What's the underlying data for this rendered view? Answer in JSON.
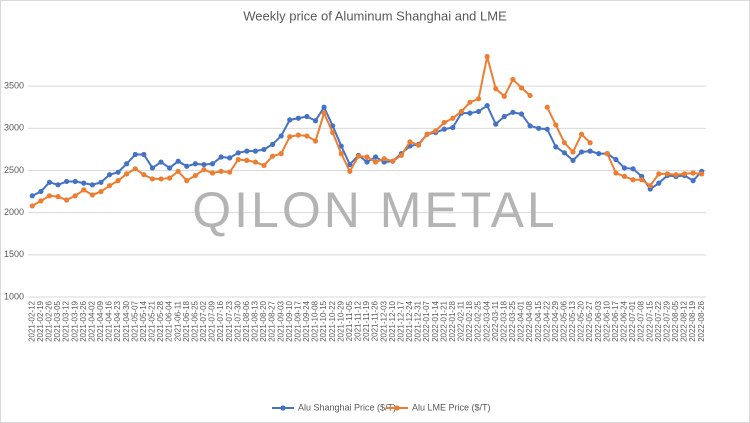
{
  "chart_data": {
    "type": "line",
    "title": "Weekly price of Aluminum Shanghai and LME",
    "watermark": "QILON METAL",
    "categories": [
      "2021-02-12",
      "2021-02-19",
      "2021-02-26",
      "2021-03-05",
      "2021-03-12",
      "2021-03-19",
      "2021-03-26",
      "2021-04-02",
      "2021-04-09",
      "2021-04-16",
      "2021-04-23",
      "2021-04-30",
      "2021-05-07",
      "2021-05-14",
      "2021-05-21",
      "2021-05-28",
      "2021-06-04",
      "2021-06-11",
      "2021-06-18",
      "2021-06-25",
      "2021-07-02",
      "2021-07-09",
      "2021-07-16",
      "2021-07-23",
      "2021-07-30",
      "2021-08-06",
      "2021-08-13",
      "2021-08-20",
      "2021-08-27",
      "2021-09-03",
      "2021-09-10",
      "2021-09-17",
      "2021-09-24",
      "2021-10-08",
      "2021-10-15",
      "2021-10-22",
      "2021-10-29",
      "2021-11-05",
      "2021-11-12",
      "2021-11-19",
      "2021-11-26",
      "2021-12-03",
      "2021-12-10",
      "2021-12-17",
      "2021-12-24",
      "2021-12-31",
      "2022-01-07",
      "2022-01-14",
      "2022-01-21",
      "2022-01-28",
      "2022-02-11",
      "2022-02-18",
      "2022-02-25",
      "2022-03-04",
      "2022-03-11",
      "2022-03-18",
      "2022-03-25",
      "2022-04-01",
      "2022-04-08",
      "2022-04-15",
      "2022-04-22",
      "2022-04-29",
      "2022-05-06",
      "2022-05-13",
      "2022-05-20",
      "2022-05-27",
      "2022-06-03",
      "2022-06-10",
      "2022-06-17",
      "2022-06-24",
      "2022-07-01",
      "2022-07-08",
      "2022-07-15",
      "2022-07-22",
      "2022-07-29",
      "2022-08-05",
      "2022-08-12",
      "2022-08-19",
      "2022-08-26"
    ],
    "series": [
      {
        "name": "Alu Shanghai Price ($/T)",
        "color": "#4472c4",
        "values": [
          2200,
          2250,
          2360,
          2330,
          2370,
          2370,
          2350,
          2330,
          2360,
          2450,
          2480,
          2580,
          2690,
          2690,
          2530,
          2600,
          2530,
          2610,
          2550,
          2580,
          2570,
          2580,
          2660,
          2650,
          2710,
          2730,
          2730,
          2750,
          2810,
          2910,
          3100,
          3120,
          3140,
          3090,
          3250,
          3030,
          2790,
          2570,
          2680,
          2600,
          2660,
          2600,
          2610,
          2700,
          2790,
          2810,
          2930,
          2950,
          2990,
          3010,
          3180,
          3180,
          3200,
          3270,
          3050,
          3140,
          3190,
          3170,
          3030,
          3000,
          2990,
          2780,
          2710,
          2620,
          2720,
          2730,
          2700,
          2700,
          2630,
          2530,
          2520,
          2430,
          2280,
          2350,
          2440,
          2430,
          2440,
          2380,
          2490
        ]
      },
      {
        "name": "Alu LME Price ($/T)",
        "color": "#ed7d31",
        "values": [
          2080,
          2140,
          2200,
          2190,
          2150,
          2200,
          2270,
          2210,
          2250,
          2320,
          2380,
          2460,
          2520,
          2450,
          2400,
          2400,
          2410,
          2490,
          2380,
          2440,
          2510,
          2470,
          2490,
          2480,
          2630,
          2620,
          2600,
          2560,
          2670,
          2700,
          2900,
          2920,
          2910,
          2850,
          3180,
          2950,
          2700,
          2490,
          2670,
          2660,
          2600,
          2640,
          2610,
          2680,
          2840,
          2800,
          2930,
          2970,
          3070,
          3120,
          3200,
          3310,
          3350,
          3850,
          3470,
          3380,
          3580,
          3480,
          3390,
          null,
          3250,
          3040,
          2830,
          2720,
          2930,
          2830,
          null,
          2700,
          2470,
          2430,
          2390,
          2390,
          2320,
          2460,
          2460,
          2450,
          2460,
          2470,
          2460
        ]
      }
    ],
    "ylim": [
      1000,
      4000
    ],
    "yticks": [
      1000,
      1500,
      2000,
      2500,
      3000,
      3500
    ],
    "grid": true,
    "legend": "bottom"
  }
}
